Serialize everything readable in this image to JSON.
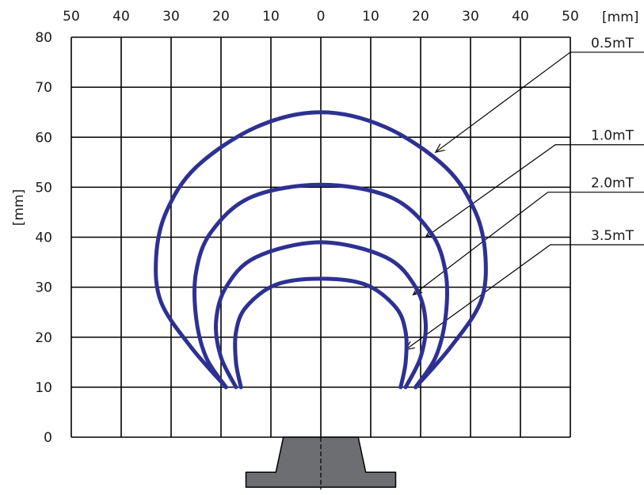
{
  "chart_data": {
    "type": "line",
    "title": "",
    "x_unit": "[mm]",
    "y_unit": "[mm]",
    "x_ticks": [
      {
        "value": -50,
        "label": "50"
      },
      {
        "value": -40,
        "label": "40"
      },
      {
        "value": -30,
        "label": "30"
      },
      {
        "value": -20,
        "label": "20"
      },
      {
        "value": -10,
        "label": "10"
      },
      {
        "value": 0,
        "label": "0"
      },
      {
        "value": 10,
        "label": "10"
      },
      {
        "value": 20,
        "label": "20"
      },
      {
        "value": 30,
        "label": "30"
      },
      {
        "value": 40,
        "label": "40"
      },
      {
        "value": 50,
        "label": "50"
      }
    ],
    "y_ticks": [
      {
        "value": 0,
        "label": "0"
      },
      {
        "value": 10,
        "label": "10"
      },
      {
        "value": 20,
        "label": "20"
      },
      {
        "value": 30,
        "label": "30"
      },
      {
        "value": 40,
        "label": "40"
      },
      {
        "value": 50,
        "label": "50"
      },
      {
        "value": 60,
        "label": "60"
      },
      {
        "value": 70,
        "label": "70"
      },
      {
        "value": 80,
        "label": "80"
      }
    ],
    "xlim": [
      -50,
      50
    ],
    "ylim": [
      0,
      80
    ],
    "grid": true,
    "series_color": "#2e3192",
    "series": [
      {
        "name": "0.5mT",
        "points": [
          [
            -19,
            10
          ],
          [
            -26,
            18
          ],
          [
            -32,
            27
          ],
          [
            -33,
            36
          ],
          [
            -31,
            45
          ],
          [
            -25,
            54
          ],
          [
            -13,
            62
          ],
          [
            0,
            65
          ],
          [
            13,
            62
          ],
          [
            25,
            54
          ],
          [
            31,
            45
          ],
          [
            33,
            36
          ],
          [
            32,
            27
          ],
          [
            26,
            18
          ],
          [
            19,
            10
          ]
        ]
      },
      {
        "name": "1.0mT",
        "points": [
          [
            -19,
            10
          ],
          [
            -23,
            16
          ],
          [
            -25,
            24
          ],
          [
            -25,
            33
          ],
          [
            -22,
            41
          ],
          [
            -14,
            48
          ],
          [
            0,
            50.5
          ],
          [
            14,
            48
          ],
          [
            22,
            41
          ],
          [
            25,
            33
          ],
          [
            25,
            24
          ],
          [
            23,
            16
          ],
          [
            19,
            10
          ]
        ]
      },
      {
        "name": "2.0mT",
        "points": [
          [
            -17,
            10
          ],
          [
            -20,
            16
          ],
          [
            -21,
            23
          ],
          [
            -19,
            30
          ],
          [
            -13,
            36
          ],
          [
            0,
            39
          ],
          [
            13,
            36
          ],
          [
            19,
            30
          ],
          [
            21,
            23
          ],
          [
            20,
            16
          ],
          [
            17,
            10
          ]
        ]
      },
      {
        "name": "3.5mT",
        "points": [
          [
            -16,
            10
          ],
          [
            -17,
            15
          ],
          [
            -17,
            21
          ],
          [
            -15,
            26
          ],
          [
            -9,
            30.5
          ],
          [
            0,
            31.7
          ],
          [
            9,
            30.5
          ],
          [
            15,
            26
          ],
          [
            17,
            21
          ],
          [
            17,
            15
          ],
          [
            16,
            10
          ]
        ]
      }
    ],
    "callouts": [
      {
        "label": "0.5mT",
        "points": [
          [
            50,
            77
          ],
          [
            23,
            57
          ]
        ]
      },
      {
        "label": "1.0mT",
        "points": [
          [
            50,
            58.5
          ],
          [
            47,
            58.5
          ],
          [
            21,
            40
          ]
        ]
      },
      {
        "label": "2.0mT",
        "points": [
          [
            50,
            49
          ],
          [
            45.5,
            49
          ],
          [
            18.5,
            28.5
          ]
        ]
      },
      {
        "label": "3.5mT",
        "points": [
          [
            50,
            38.5
          ],
          [
            46,
            38.5
          ],
          [
            17,
            17.5
          ]
        ]
      }
    ],
    "magnet": {
      "color": "#6d6e71",
      "outline": [
        [
          -7.5,
          0
        ],
        [
          7.5,
          0
        ],
        [
          9,
          -7
        ],
        [
          15,
          -7
        ],
        [
          15,
          -10
        ],
        [
          -15,
          -10
        ],
        [
          -15,
          -7
        ],
        [
          -9,
          -7
        ]
      ]
    }
  }
}
